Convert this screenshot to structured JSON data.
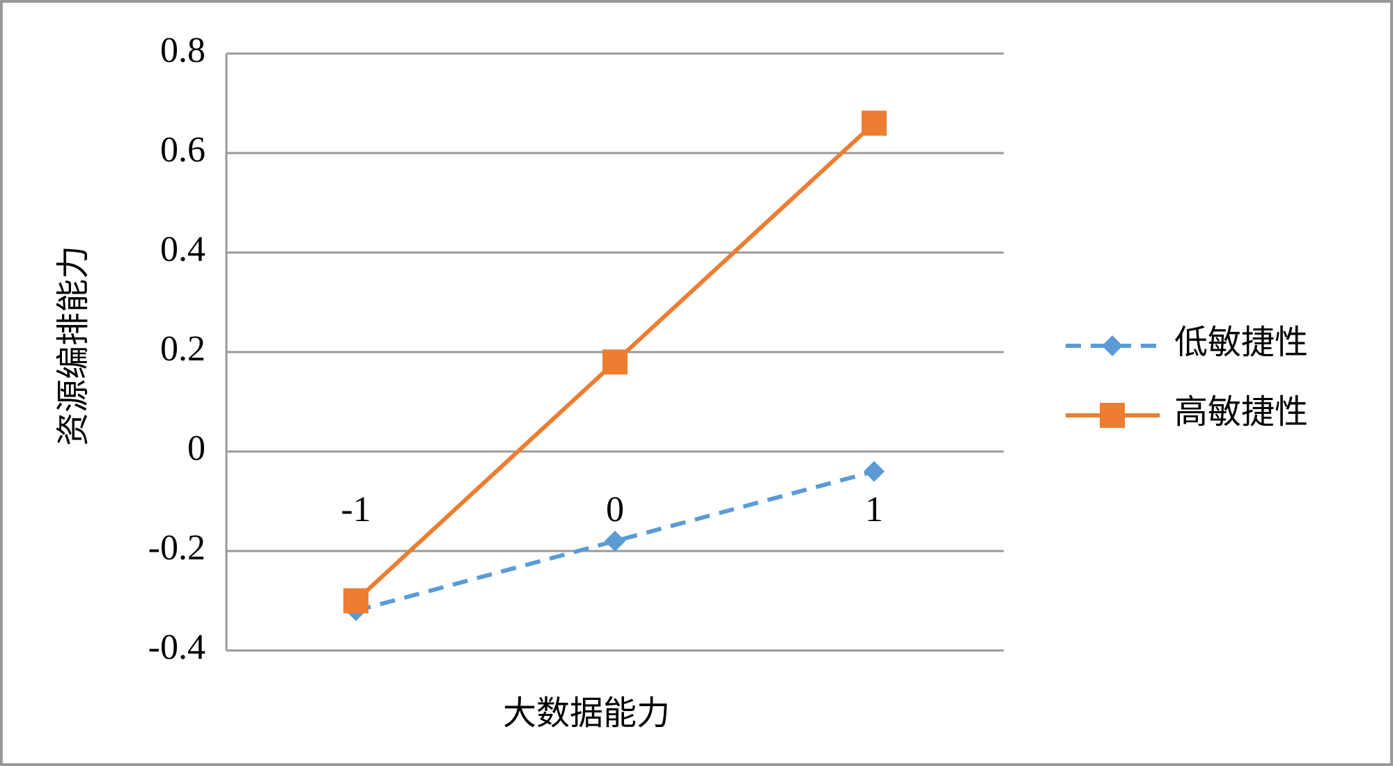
{
  "chart_data": {
    "type": "line",
    "x_label": "大数据能力",
    "y_label": "资源编排能力",
    "categories": [
      "-1",
      "0",
      "1"
    ],
    "series": [
      {
        "name": "低敏捷性",
        "color": "#5b9bd5",
        "dash": true,
        "marker": "diamond",
        "values": [
          -0.32,
          -0.18,
          -0.04
        ]
      },
      {
        "name": "高敏捷性",
        "color": "#ed7d31",
        "dash": false,
        "marker": "square",
        "values": [
          -0.3,
          0.18,
          0.66
        ]
      }
    ],
    "ylim": [
      -0.4,
      0.8
    ],
    "yticks": [
      -0.4,
      -0.2,
      0,
      0.2,
      0.4,
      0.6,
      0.8
    ],
    "grid": true,
    "legend": "right"
  }
}
